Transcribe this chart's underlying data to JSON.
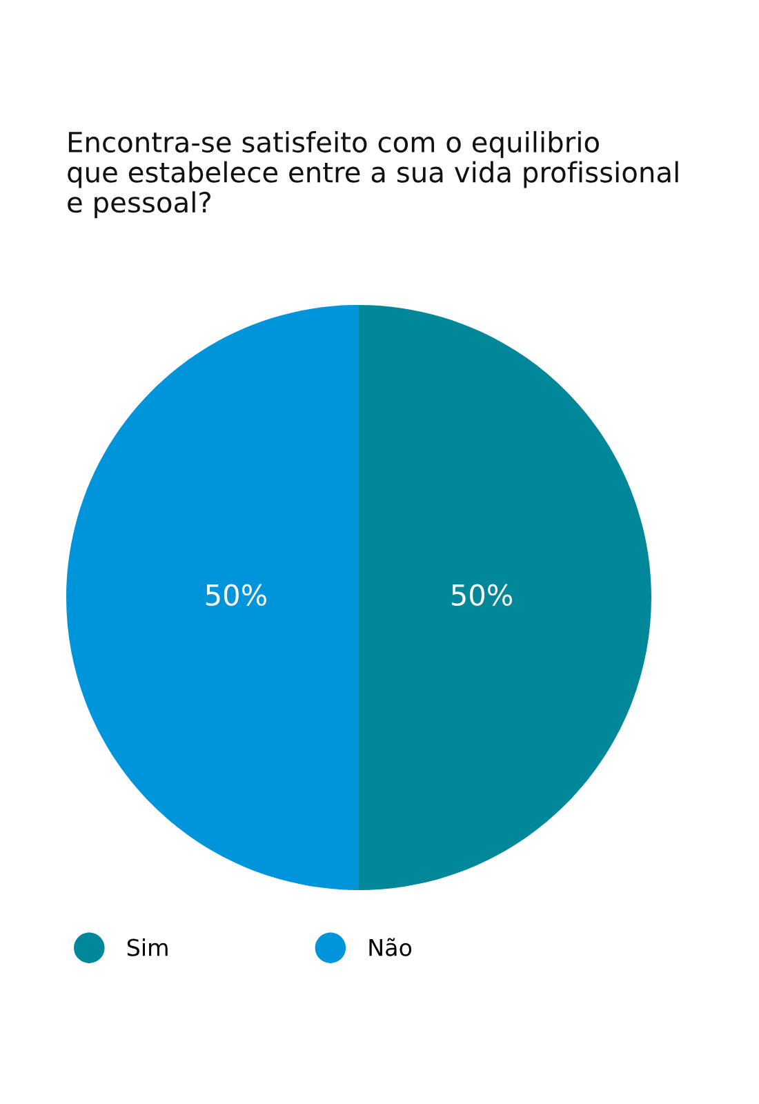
{
  "chart_data": {
    "type": "pie",
    "title": "Encontra-se satisfeito com o equilibrio\nque estabelece entre a sua vida profissional\ne pessoal?",
    "categories": [
      "Sim",
      "Não"
    ],
    "values": [
      50,
      50
    ],
    "colors": [
      "#00879a",
      "#0095da"
    ],
    "value_labels": [
      "50%",
      "50%"
    ],
    "legend": "bottom left"
  }
}
